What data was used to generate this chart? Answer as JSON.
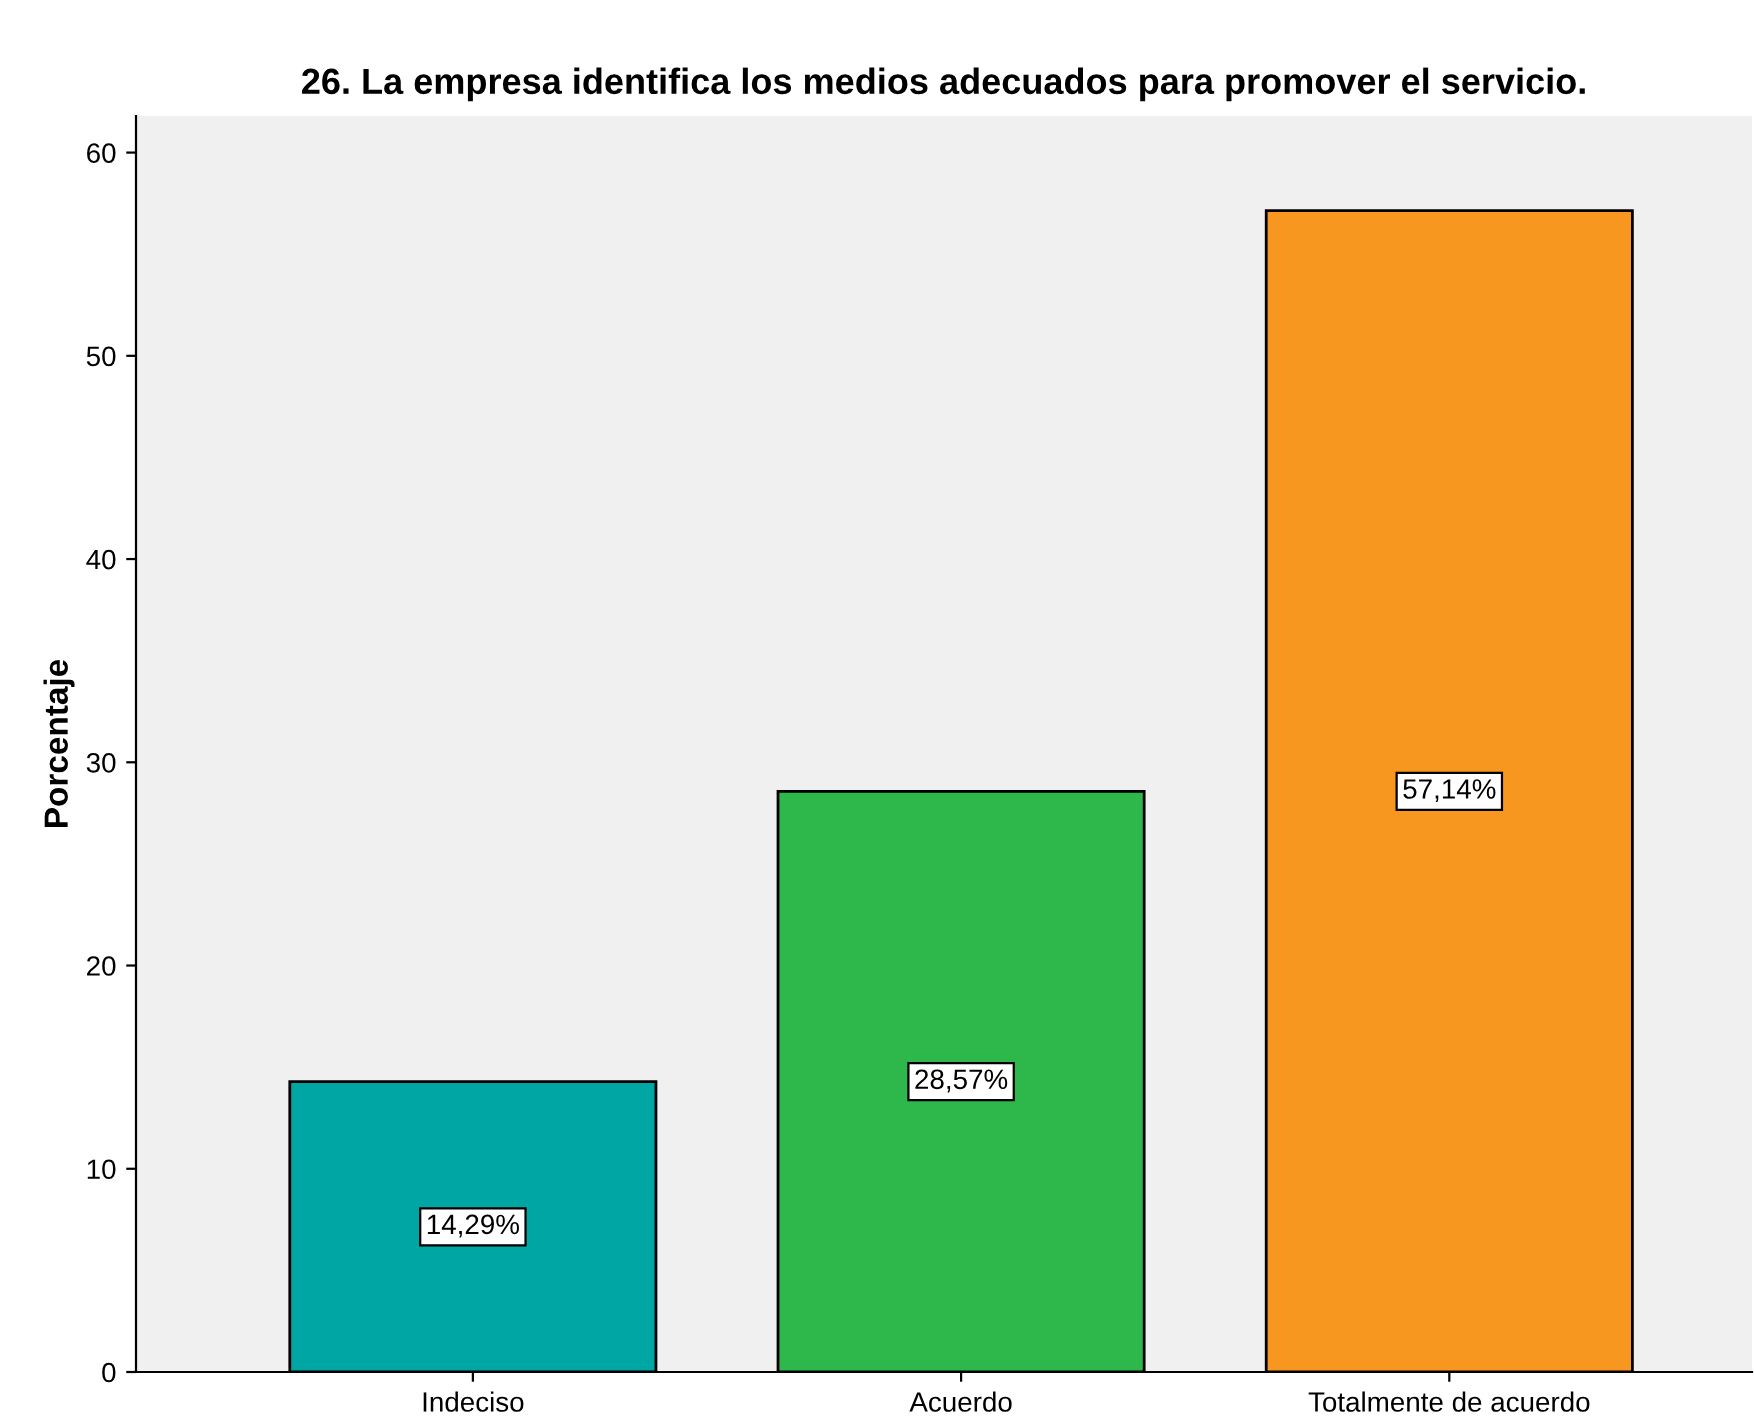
{
  "chart_data": {
    "type": "bar",
    "title": "26. La empresa identifica los medios adecuados para promover el servicio.",
    "ylabel": "Porcentaje",
    "categories": [
      "Indeciso",
      "Acuerdo",
      "Totalmente de acuerdo"
    ],
    "values": [
      14.29,
      28.57,
      57.14
    ],
    "colors": [
      "#00a6a3",
      "#2eb84c",
      "#f7971f"
    ],
    "value_labels": [
      "14,29%",
      "28,57%",
      "57,14%"
    ],
    "ylim": [
      0,
      61.8
    ],
    "yticks": [
      0,
      10,
      20,
      30,
      40,
      50,
      60
    ],
    "grid": false,
    "legend": false
  }
}
